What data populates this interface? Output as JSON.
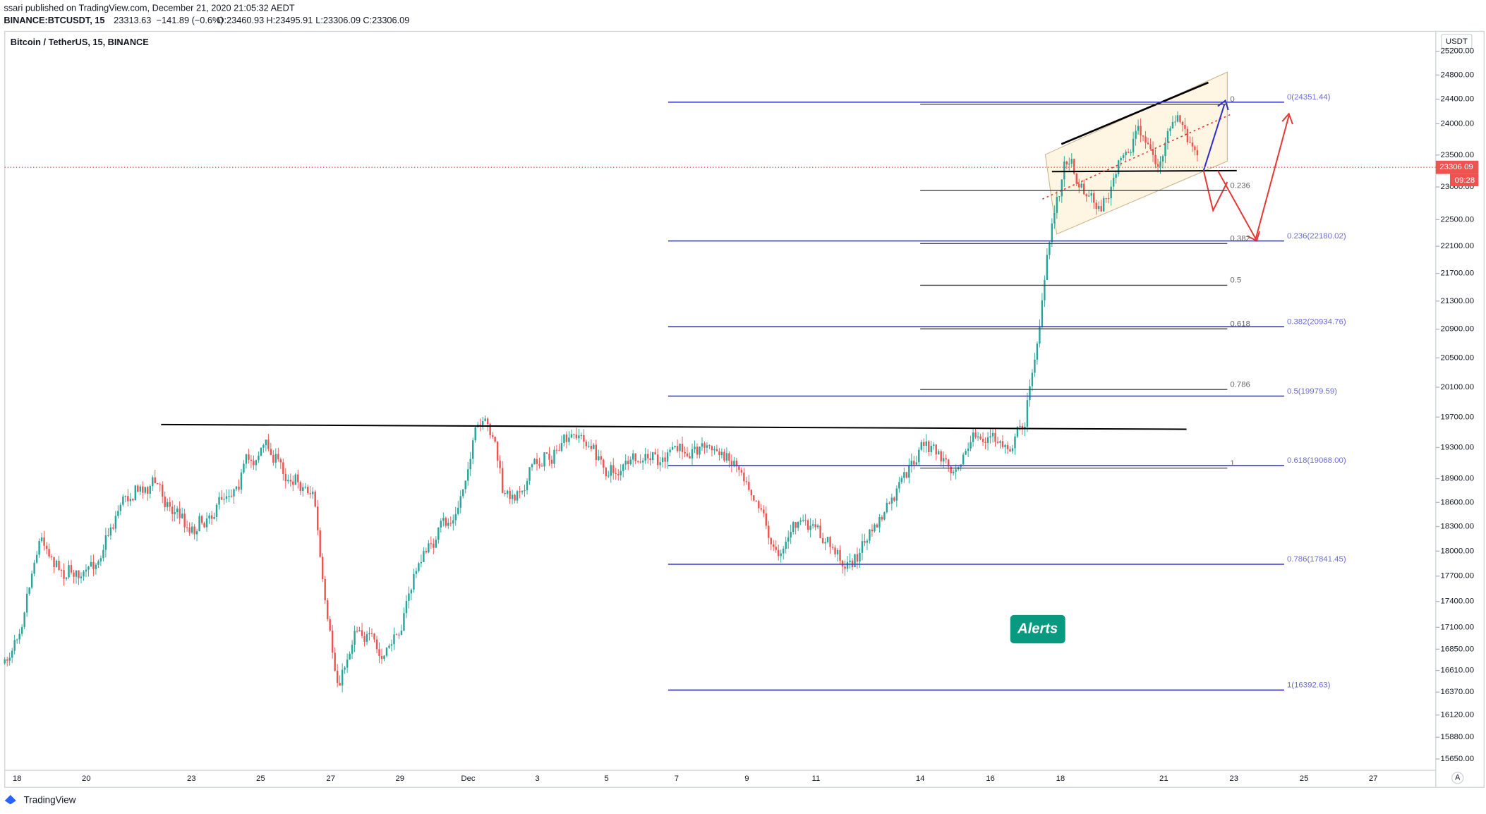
{
  "header": {
    "publisher": "ssari published on TradingView.com, December 21, 2020 21:05:32 AEDT",
    "symbol": "BINANCE:BTCUSDT, 15",
    "last": "23313.63",
    "change": "−141.89 (−0.6%)",
    "open": "O:23460.93",
    "high": "H:23495.91",
    "low": "L:23306.09",
    "close": "C:23306.09"
  },
  "chart": {
    "title": "Bitcoin / TetherUS, 15, BINANCE",
    "currency": "USDT",
    "price_tag": {
      "value": 23306.09,
      "label": "23306.09"
    },
    "countdown": "09:28",
    "alerts_button": "Alerts",
    "auto_button": "A",
    "price_axis": {
      "ticks": [
        {
          "value": 25200,
          "label": "25200.00"
        },
        {
          "value": 24800,
          "label": "24800.00"
        },
        {
          "value": 24400,
          "label": "24400.00"
        },
        {
          "value": 24000,
          "label": "24000.00"
        },
        {
          "value": 23500,
          "label": "23500.00"
        },
        {
          "value": 23000,
          "label": "23000.00"
        },
        {
          "value": 22500,
          "label": "22500.00"
        },
        {
          "value": 22100,
          "label": "22100.00"
        },
        {
          "value": 21700,
          "label": "21700.00"
        },
        {
          "value": 21300,
          "label": "21300.00"
        },
        {
          "value": 20900,
          "label": "20900.00"
        },
        {
          "value": 20500,
          "label": "20500.00"
        },
        {
          "value": 20100,
          "label": "20100.00"
        },
        {
          "value": 19700,
          "label": "19700.00"
        },
        {
          "value": 19300,
          "label": "19300.00"
        },
        {
          "value": 18900,
          "label": "18900.00"
        },
        {
          "value": 18600,
          "label": "18600.00"
        },
        {
          "value": 18300,
          "label": "18300.00"
        },
        {
          "value": 18000,
          "label": "18000.00"
        },
        {
          "value": 17700,
          "label": "17700.00"
        },
        {
          "value": 17400,
          "label": "17400.00"
        },
        {
          "value": 17100,
          "label": "17100.00"
        },
        {
          "value": 16850,
          "label": "16850.00"
        },
        {
          "value": 16610,
          "label": "16610.00"
        },
        {
          "value": 16370,
          "label": "16370.00"
        },
        {
          "value": 16120,
          "label": "16120.00"
        },
        {
          "value": 15880,
          "label": "15880.00"
        },
        {
          "value": 15650,
          "label": "15650.00"
        }
      ],
      "log": true
    },
    "time_axis": [
      "18",
      "20",
      "23",
      "25",
      "27",
      "29",
      "Dec",
      "3",
      "5",
      "7",
      "9",
      "11",
      "14",
      "16",
      "18",
      "21",
      "23",
      "25",
      "27"
    ],
    "fib_blue": [
      {
        "price": 24351.44,
        "label": "0(24351.44)"
      },
      {
        "price": 22180.02,
        "label": "0.236(22180.02)"
      },
      {
        "price": 20934.76,
        "label": "0.382(20934.76)"
      },
      {
        "price": 19979.59,
        "label": "0.5(19979.59)"
      },
      {
        "price": 19068.0,
        "label": "0.618(19068.00)"
      },
      {
        "price": 17841.45,
        "label": "0.786(17841.45)"
      },
      {
        "price": 16392.63,
        "label": "1(16392.63)"
      }
    ],
    "fib_black": [
      "0",
      "0.236",
      "0.382",
      "0.5",
      "0.618",
      "0.786",
      "1"
    ]
  },
  "footer": {
    "brand": "TradingView"
  }
}
